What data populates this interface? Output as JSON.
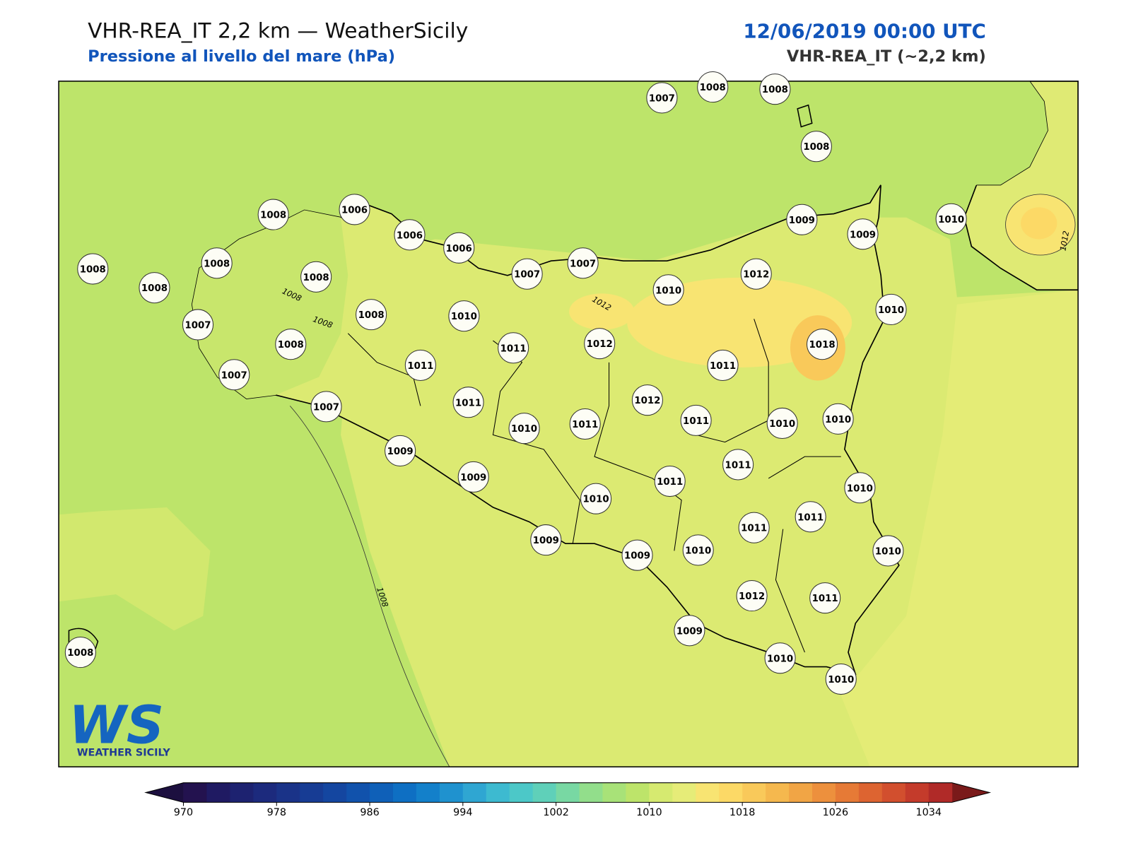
{
  "header": {
    "title": "VHR-REA_IT 2,2 km — WeatherSicily",
    "subtitle": "Pressione al livello del mare (hPa)",
    "datetime": "12/06/2019 00:00 UTC",
    "model": "VHR-REA_IT (~2,2 km)"
  },
  "stations": [
    1007,
    1008,
    1008,
    1008,
    1008,
    1006,
    1006,
    1006,
    1008,
    1008,
    1008,
    1008,
    1007,
    1008,
    1008,
    1007,
    1007,
    1007,
    1007,
    1010,
    1011,
    1011,
    1011,
    1010,
    1009,
    1009,
    1009,
    1010,
    1011,
    1012,
    1010,
    1012,
    1009,
    1009,
    1010,
    1010,
    1018,
    1011,
    1012,
    1011,
    1010,
    1010,
    1011,
    1011,
    1010,
    1011,
    1011,
    1010,
    1009,
    1010,
    1012,
    1011,
    1009,
    1010,
    1010,
    1008
  ],
  "contour_labels": [
    1008,
    1008,
    1012,
    1008,
    1012
  ],
  "logo": {
    "mark": "WS",
    "name": "WEATHER SICILY"
  },
  "colorbar": {
    "lim": [
      970,
      1036
    ],
    "ticks": [
      970,
      978,
      986,
      994,
      1002,
      1010,
      1018,
      1026,
      1034
    ],
    "colors": [
      "#23124f",
      "#1f1a62",
      "#1d2270",
      "#1c2a7d",
      "#1a3388",
      "#173c94",
      "#1446a0",
      "#1152ac",
      "#0f60b8",
      "#0e6fc3",
      "#1380ca",
      "#1f92cf",
      "#2fa6d2",
      "#3dbad0",
      "#4cc8c8",
      "#5fd0b9",
      "#78d8a3",
      "#92de8b",
      "#a8e278",
      "#bde46a",
      "#d6ea70",
      "#e6ec78",
      "#f8e472",
      "#fcd966",
      "#f9c95a",
      "#f5b84e",
      "#f1a545",
      "#ed903d",
      "#e67a36",
      "#dd6431",
      "#d24f2e",
      "#c43b2b",
      "#b02a28"
    ],
    "under_color": "#1c0f3f",
    "over_color": "#7a1a1a"
  }
}
